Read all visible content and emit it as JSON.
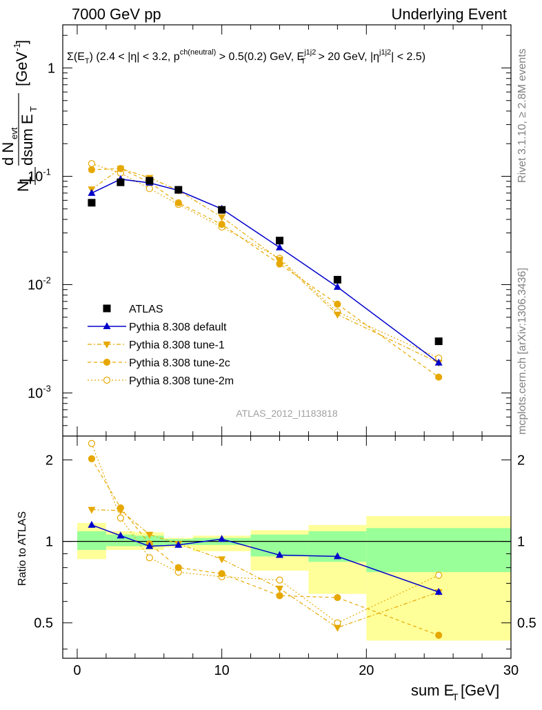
{
  "header": {
    "left": "7000 GeV pp",
    "right": "Underlying Event"
  },
  "side_labels": {
    "rivet": "Rivet 3.1.10, ≥ 2.8M events",
    "mcplots": "mcplots.cern.ch [arXiv:1306.3436]"
  },
  "analysis_id": "ATLAS_2012_I1183818",
  "upper_title": "Σ(E_T) (2.4 < |η| < 3.2, p^ch(neutral) > 0.5(0.2) GeV, E_T^j1j2 > 20 GeV, |η^j1j2| < 2.5)",
  "colors": {
    "atlas": "#000000",
    "default": "#0000cc",
    "tune": "#e6a800",
    "band_inner": "#99ff99",
    "band_outer": "#ffff99"
  },
  "chart_data": [
    {
      "type": "line",
      "panel": "main",
      "ylabel": "1/N_evt dN_evt/dsum E_T [GeV^-1]",
      "xlim": [
        -1,
        30
      ],
      "ylim": [
        0.0004,
        2.5
      ],
      "yscale": "log",
      "y_tick_labels": [
        "10^-3",
        "10^-2",
        "10^-1",
        "1"
      ],
      "legend_position": "bottom-left",
      "x_bins": [
        [
          0,
          2
        ],
        [
          2,
          4
        ],
        [
          4,
          6
        ],
        [
          6,
          8
        ],
        [
          8,
          12
        ],
        [
          12,
          16
        ],
        [
          16,
          20
        ],
        [
          20,
          30
        ]
      ],
      "series": [
        {
          "name": "ATLAS",
          "style": "data",
          "x": [
            1,
            3,
            5,
            7,
            10,
            14,
            18,
            25
          ],
          "y": [
            0.057,
            0.088,
            0.091,
            0.075,
            0.049,
            0.0255,
            0.0111,
            0.003
          ]
        },
        {
          "name": "Pythia 8.308 default",
          "style": "default",
          "x": [
            1,
            3,
            5,
            7,
            10,
            14,
            18,
            25
          ],
          "y": [
            0.07,
            0.094,
            0.087,
            0.074,
            0.05,
            0.022,
            0.0095,
            0.0019
          ]
        },
        {
          "name": "Pythia 8.308 tune-1",
          "style": "tune1",
          "x": [
            1,
            3,
            5,
            7,
            10,
            14,
            18,
            25
          ],
          "y": [
            0.076,
            0.118,
            0.097,
            0.074,
            0.042,
            0.017,
            0.0053,
            0.0019
          ]
        },
        {
          "name": "Pythia 8.308 tune-2c",
          "style": "tune2c",
          "x": [
            1,
            3,
            5,
            7,
            10,
            14,
            18,
            25
          ],
          "y": [
            0.115,
            0.118,
            0.088,
            0.057,
            0.036,
            0.0155,
            0.0066,
            0.0014
          ]
        },
        {
          "name": "Pythia 8.308 tune-2m",
          "style": "tune2m",
          "x": [
            1,
            3,
            5,
            7,
            10,
            14,
            18,
            25
          ],
          "y": [
            0.131,
            0.107,
            0.077,
            0.055,
            0.034,
            0.0175,
            0.0056,
            0.0021
          ]
        }
      ]
    },
    {
      "type": "line",
      "panel": "ratio",
      "xlabel": "sum E_T [GeV]",
      "ylabel": "Ratio to ATLAS",
      "xlim": [
        -1,
        30
      ],
      "ylim": [
        0.37,
        2.45
      ],
      "yscale": "log",
      "x_ticks": [
        0,
        10,
        20,
        30
      ],
      "y_ticks": [
        0.5,
        1,
        2
      ],
      "bands": {
        "inner": [
          [
            0.93,
            1.09
          ],
          [
            0.96,
            1.06
          ],
          [
            0.96,
            1.05
          ],
          [
            0.97,
            1.02
          ],
          [
            0.97,
            1.03
          ],
          [
            0.88,
            1.06
          ],
          [
            0.84,
            1.09
          ],
          [
            0.77,
            1.12
          ]
        ],
        "outer": [
          [
            0.86,
            1.17
          ],
          [
            0.93,
            1.09
          ],
          [
            0.93,
            1.08
          ],
          [
            0.95,
            1.03
          ],
          [
            0.92,
            1.05
          ],
          [
            0.78,
            1.1
          ],
          [
            0.64,
            1.15
          ],
          [
            0.43,
            1.24
          ]
        ]
      },
      "series": [
        {
          "name": "Pythia 8.308 default",
          "style": "default",
          "x": [
            1,
            3,
            5,
            7,
            10,
            14,
            18,
            25
          ],
          "y": [
            1.15,
            1.05,
            0.96,
            0.97,
            1.02,
            0.89,
            0.88,
            0.65
          ]
        },
        {
          "name": "Pythia 8.308 tune-1",
          "style": "tune1",
          "x": [
            1,
            3,
            5,
            7,
            10,
            14,
            18,
            25
          ],
          "y": [
            1.31,
            1.3,
            1.06,
            0.98,
            0.86,
            0.67,
            0.48,
            0.65
          ]
        },
        {
          "name": "Pythia 8.308 tune-2c",
          "style": "tune2c",
          "x": [
            1,
            3,
            5,
            7,
            10,
            14,
            18,
            25
          ],
          "y": [
            2.02,
            1.33,
            0.98,
            0.8,
            0.76,
            0.63,
            0.62,
            0.45
          ]
        },
        {
          "name": "Pythia 8.308 tune-2m",
          "style": "tune2m",
          "x": [
            1,
            3,
            5,
            7,
            10,
            14,
            18,
            25
          ],
          "y": [
            2.3,
            1.22,
            0.87,
            0.77,
            0.74,
            0.72,
            0.5,
            0.75
          ]
        }
      ]
    }
  ]
}
